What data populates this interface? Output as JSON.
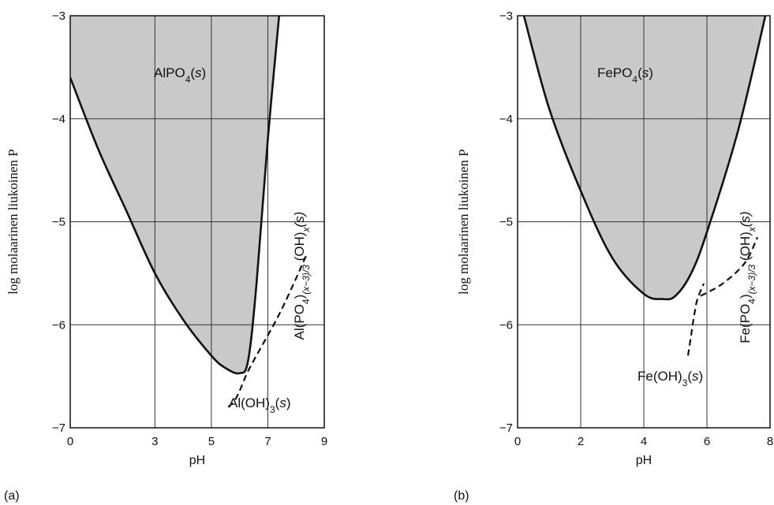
{
  "figure": {
    "y_axis_label": "log molaarinen liukoinen P"
  },
  "chart_data": [
    {
      "type": "line",
      "panel_label": "(a)",
      "xlabel": "pH",
      "ylabel": "log molaarinen liukoinen P",
      "xlim": [
        0,
        9
      ],
      "ylim": [
        -7,
        -3
      ],
      "xticks": [
        0,
        3,
        5,
        7,
        9
      ],
      "xtick_labels": [
        "0",
        "3",
        "5",
        "7",
        "9"
      ],
      "yticks": [
        -7,
        -6,
        -5,
        -4,
        -3
      ],
      "ytick_labels": [
        "−7",
        "−6",
        "−5",
        "−4",
        "−3"
      ],
      "grid": true,
      "series": [
        {
          "style": "solid",
          "shaded_above": true,
          "x": [
            0,
            1,
            2,
            3,
            4,
            5,
            5.5,
            6,
            6.3,
            6.6,
            7,
            7.4
          ],
          "y": [
            -3.6,
            -4.3,
            -4.9,
            -5.5,
            -5.95,
            -6.3,
            -6.42,
            -6.47,
            -6.35,
            -5.6,
            -4.2,
            -3.0
          ]
        },
        {
          "style": "dashed",
          "x": [
            5.6,
            5.9,
            6.3,
            6.8,
            7.4,
            8.0,
            8.4
          ],
          "y": [
            -6.8,
            -6.7,
            -6.45,
            -6.2,
            -5.9,
            -5.55,
            -5.3
          ]
        }
      ],
      "annotations": [
        {
          "main": "AlPO",
          "sub": "4",
          "tail": "(",
          "italic": "s",
          "end": ")"
        },
        {
          "rotated": true,
          "main": "Al(PO",
          "sub": "4",
          "tail": ")",
          "sub2": "(x−3)/3",
          "tail2": " (OH)",
          "sub3": "x",
          "italic": "(s)"
        },
        {
          "main": "Al(OH)",
          "sub": "3",
          "tail": "(",
          "italic": "s",
          "end": ")"
        }
      ]
    },
    {
      "type": "line",
      "panel_label": "(b)",
      "xlabel": "pH",
      "ylabel": "log molaarinen liukoinen P",
      "xlim": [
        0,
        8
      ],
      "ylim": [
        -7,
        -3
      ],
      "xticks": [
        0,
        2,
        4,
        6,
        8
      ],
      "xtick_labels": [
        "0",
        "2",
        "4",
        "6",
        "8"
      ],
      "yticks": [
        -7,
        -6,
        -5,
        -4,
        -3
      ],
      "ytick_labels": [
        "−7",
        "−6",
        "−5",
        "−4",
        "−3"
      ],
      "grid": true,
      "series": [
        {
          "style": "solid",
          "shaded_above": true,
          "x": [
            0.2,
            1,
            2,
            3,
            4,
            4.6,
            5,
            5.5,
            6,
            7,
            8
          ],
          "y": [
            -3.0,
            -3.9,
            -4.7,
            -5.35,
            -5.7,
            -5.75,
            -5.72,
            -5.5,
            -5.1,
            -4.1,
            -2.8
          ]
        },
        {
          "style": "dashed",
          "x": [
            5.8,
            6.5,
            7.2,
            7.6
          ],
          "y": [
            -5.72,
            -5.6,
            -5.4,
            -5.15
          ]
        },
        {
          "style": "dashed",
          "x": [
            5.4,
            5.5,
            5.6,
            5.7,
            5.9
          ],
          "y": [
            -6.3,
            -6.1,
            -5.9,
            -5.75,
            -5.6
          ]
        }
      ],
      "annotations": [
        {
          "main": "FePO",
          "sub": "4",
          "tail": "(",
          "italic": "s",
          "end": ")"
        },
        {
          "rotated": true,
          "main": "Fe(PO",
          "sub": "4",
          "tail": ")",
          "sub2": "(x−3)/3",
          "tail2": " (OH)",
          "sub3": "x",
          "italic": "(s)"
        },
        {
          "main": "Fe(OH)",
          "sub": "3",
          "tail": "(",
          "italic": "s",
          "end": ")"
        }
      ]
    }
  ]
}
